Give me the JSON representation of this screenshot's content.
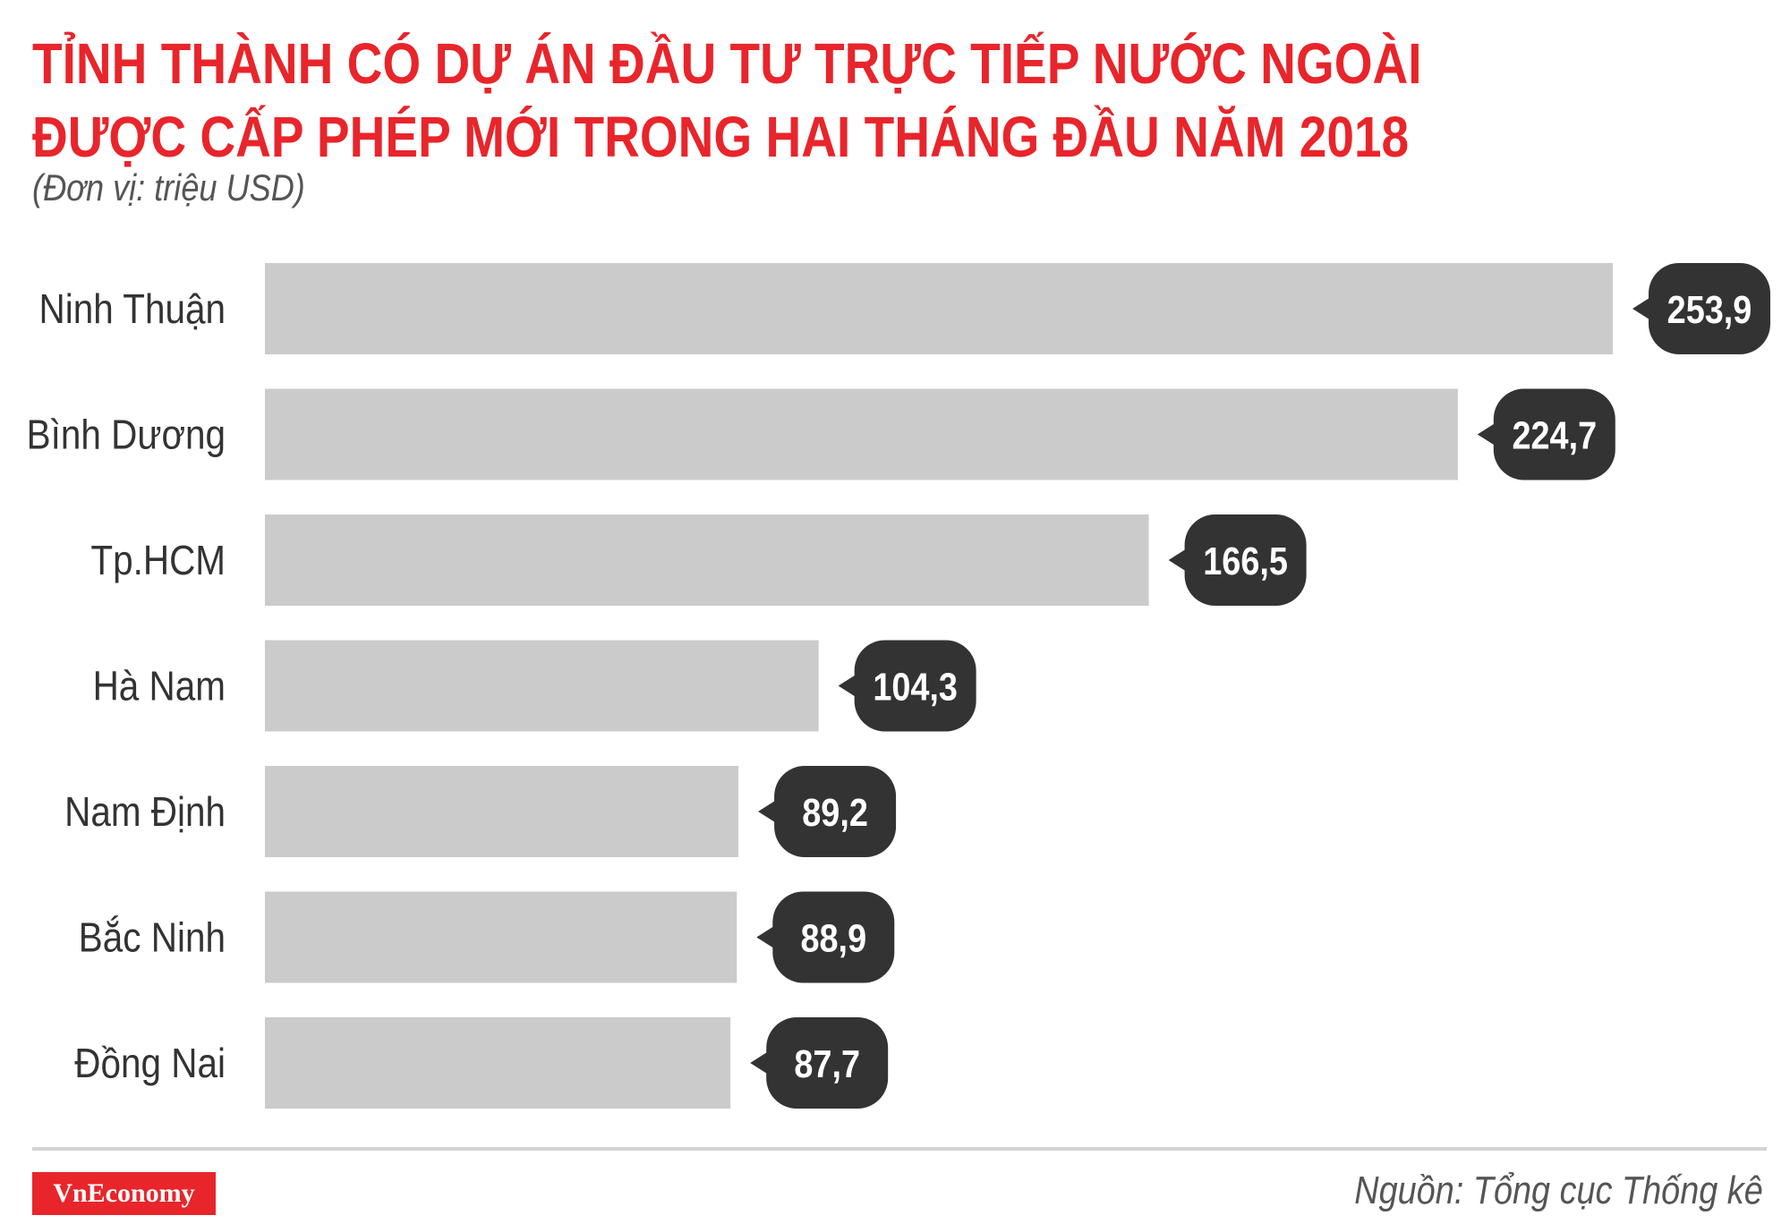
{
  "title_lines": [
    "TỈNH THÀNH CÓ DỰ ÁN ĐẦU TƯ TRỰC TIẾP NƯỚC NGOÀI",
    "ĐƯỢC CẤP PHÉP MỚI TRONG HAI THÁNG ĐẦU NĂM 2018"
  ],
  "unit_label": "(Đơn vị: triệu USD)",
  "source": "Nguồn: Tổng cục Thống kê",
  "logo_text": "VnEconomy",
  "colors": {
    "title": "#e8252b",
    "bar": "#cccbcb",
    "label_bubble": "#333333",
    "label_text": "#ffffff",
    "category_text": "#333333"
  },
  "chart_data": {
    "type": "bar",
    "orientation": "horizontal",
    "title": "TỈNH THÀNH CÓ DỰ ÁN ĐẦU TƯ TRỰC TIẾP NƯỚC NGOÀI ĐƯỢC CẤP PHÉP MỚI TRONG HAI THÁNG ĐẦU NĂM 2018",
    "unit": "(Đơn vị: triệu USD)",
    "categories": [
      "Ninh Thuận",
      "Bình Dương",
      "Tp.HCM",
      "Hà Nam",
      "Nam Định",
      "Bắc Ninh",
      "Đồng Nai"
    ],
    "values": [
      253.9,
      224.7,
      166.5,
      104.3,
      89.2,
      88.9,
      87.7
    ],
    "value_labels": [
      "253,9",
      "224,7",
      "166,5",
      "104,3",
      "89,2",
      "88,9",
      "87,7"
    ],
    "xlim": [
      0,
      253.9
    ],
    "grid": false,
    "legend": "none"
  }
}
